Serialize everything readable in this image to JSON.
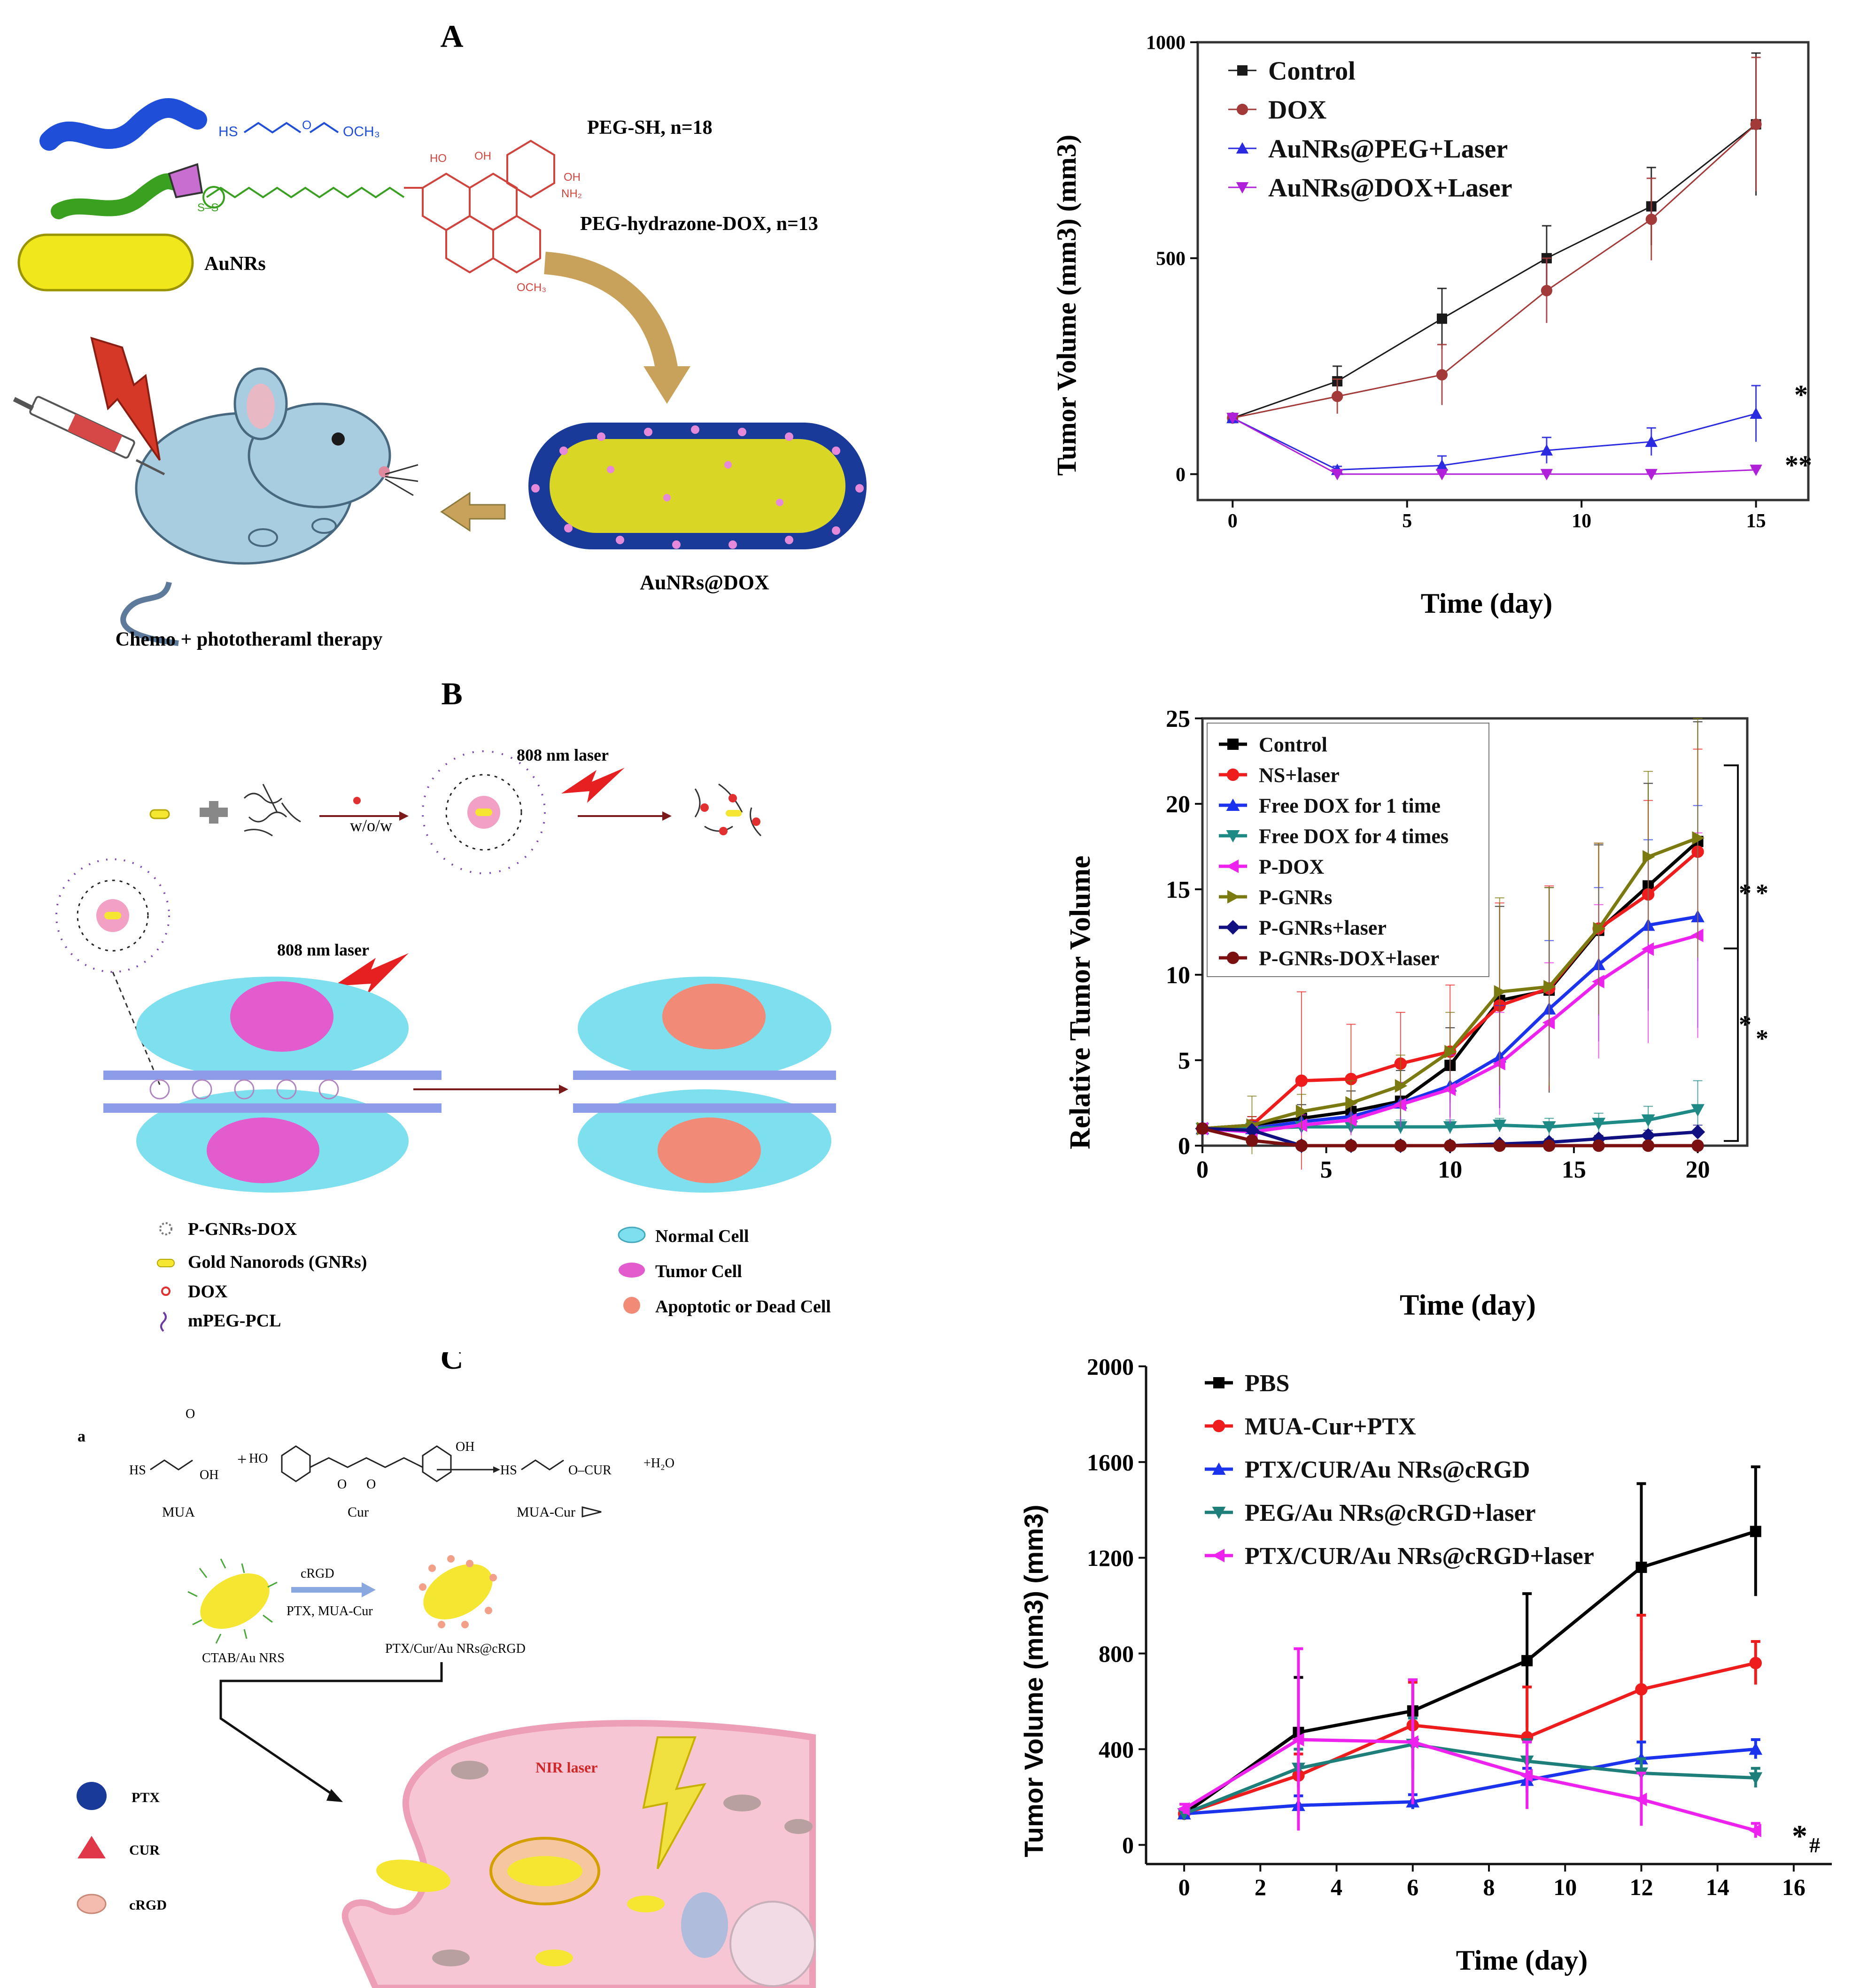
{
  "panels": {
    "A": {
      "letter": "A",
      "labels": {
        "peg_sh": "PEG-SH, n=18",
        "peg_dox": "PEG-hydrazone-DOX,  n=13",
        "aunrs": "AuNRs",
        "aunrs_dox": "AuNRs@DOX",
        "therapy": "Chemo + phototheraml  therapy",
        "sh_formula_left": "HS",
        "sh_formula_right": "OCH₃",
        "dox_methoxy": "OCH₃",
        "dox_nh2": "NH₂"
      }
    },
    "B": {
      "letter": "B",
      "labels": {
        "laser1": "808 nm laser",
        "laser2": "808 nm laser",
        "wow": "w/o/w"
      },
      "legend_left": [
        "P-GNRs-DOX",
        "Gold Nanorods (GNRs)",
        "DOX",
        "mPEG-PCL"
      ],
      "legend_right": [
        "Normal Cell",
        "Tumor Cell",
        "Apoptotic or Dead Cell"
      ]
    },
    "C": {
      "letter": "C",
      "labels": {
        "a": "a",
        "mua": "MUA",
        "cur": "Cur",
        "mua_cur": "MUA-Cur",
        "h2o": "+H₂O",
        "crgd": "cRGD",
        "ptx_mua": "PTX, MUA-Cur",
        "ctab": "CTAB/Au NRS",
        "ptx_cur_au": "PTX/Cur/Au NRs@cRGD",
        "nir": "NIR laser",
        "hs": "HS",
        "oh": "OH",
        "ho": "HO",
        "ocur": "O–CUR"
      },
      "legend": [
        "PTX",
        "CUR",
        "cRGD"
      ]
    }
  },
  "chart_data": [
    {
      "type": "line",
      "id": "chart-a",
      "title": "",
      "xlabel": "Time (day)",
      "ylabel": "Tumor Volume (mm3) (mm3)",
      "xlim": [
        -1,
        16.5
      ],
      "ylim": [
        -60,
        1000
      ],
      "xticks": [
        0,
        5,
        10,
        15
      ],
      "yticks": [
        0,
        500,
        1000
      ],
      "x": [
        0,
        3,
        6,
        9,
        12,
        15
      ],
      "series": [
        {
          "name": "Control",
          "color": "#1a1a1a",
          "marker": "square",
          "values": [
            130,
            215,
            360,
            500,
            620,
            810
          ],
          "errors": [
            10,
            35,
            70,
            75,
            90,
            165
          ]
        },
        {
          "name": "DOX",
          "color": "#a33a3a",
          "marker": "circle",
          "values": [
            130,
            180,
            230,
            425,
            590,
            810
          ],
          "errors": [
            10,
            40,
            70,
            75,
            95,
            155
          ]
        },
        {
          "name": "AuNRs@PEG+Laser",
          "color": "#2a2ae0",
          "marker": "triangle-up",
          "values": [
            130,
            10,
            20,
            55,
            75,
            140
          ],
          "errors": [
            8,
            8,
            22,
            30,
            32,
            65
          ]
        },
        {
          "name": "AuNRs@DOX+Laser",
          "color": "#b020d8",
          "marker": "triangle-down",
          "values": [
            130,
            0,
            0,
            0,
            0,
            10
          ],
          "errors": [
            6,
            4,
            4,
            4,
            4,
            4
          ]
        }
      ],
      "annotations": [
        "*",
        "**"
      ]
    },
    {
      "type": "line",
      "id": "chart-b",
      "title": "",
      "xlabel": "Time (day)",
      "ylabel": "Relative Tumor Volume",
      "xlim": [
        0,
        22
      ],
      "ylim": [
        0,
        25
      ],
      "xticks": [
        0,
        5,
        10,
        15,
        20
      ],
      "yticks": [
        0,
        5,
        10,
        15,
        20,
        25
      ],
      "x": [
        0,
        2,
        4,
        6,
        8,
        10,
        12,
        14,
        16,
        18,
        20
      ],
      "series": [
        {
          "name": "Control",
          "color": "#000000",
          "marker": "square",
          "values": [
            1,
            1.2,
            1.6,
            2.0,
            2.6,
            4.7,
            8.5,
            9.1,
            12.6,
            15.2,
            17.8
          ],
          "errors": [
            0.2,
            0.5,
            0.8,
            1.2,
            1.8,
            2.2,
            5.5,
            6.0,
            5.0,
            6.0,
            7.0
          ]
        },
        {
          "name": "NS+laser",
          "color": "#ee1c1c",
          "marker": "circle",
          "values": [
            1,
            1.2,
            3.8,
            3.9,
            4.8,
            5.5,
            8.2,
            9.2,
            12.7,
            14.7,
            17.2
          ],
          "errors": [
            0.2,
            0.5,
            5.2,
            3.2,
            3.0,
            3.9,
            6.0,
            6.0,
            5.0,
            5.5,
            6.0
          ]
        },
        {
          "name": "Free DOX for 1 time",
          "color": "#1c33ee",
          "marker": "triangle-up",
          "values": [
            1,
            1.0,
            1.4,
            1.7,
            2.5,
            3.5,
            5.2,
            8.0,
            10.6,
            12.9,
            13.4
          ],
          "errors": [
            0.2,
            0.4,
            0.6,
            0.9,
            1.2,
            1.8,
            3.0,
            4.0,
            4.5,
            5.0,
            6.5
          ]
        },
        {
          "name": "Free DOX for 4 times",
          "color": "#1e8a86",
          "marker": "triangle-down",
          "values": [
            1,
            1.0,
            1.1,
            1.1,
            1.1,
            1.1,
            1.2,
            1.1,
            1.3,
            1.5,
            2.1
          ],
          "errors": [
            0.2,
            0.3,
            0.3,
            0.3,
            0.4,
            0.4,
            0.4,
            0.5,
            0.6,
            0.8,
            1.7
          ]
        },
        {
          "name": "P-DOX",
          "color": "#ee22ee",
          "marker": "triangle-left",
          "values": [
            1,
            0.8,
            1.2,
            1.5,
            2.4,
            3.3,
            4.8,
            7.2,
            9.6,
            11.5,
            12.3
          ],
          "errors": [
            0.2,
            0.3,
            0.6,
            0.9,
            1.3,
            2.0,
            3.0,
            3.5,
            4.5,
            5.5,
            6.0
          ]
        },
        {
          "name": "P-GNRs",
          "color": "#7a7a10",
          "marker": "triangle-right",
          "values": [
            1,
            1.2,
            2.0,
            2.5,
            3.5,
            5.5,
            9.0,
            9.3,
            12.7,
            16.9,
            18.0
          ],
          "errors": [
            0.2,
            1.7,
            1.0,
            1.3,
            1.8,
            2.3,
            5.5,
            5.8,
            5.0,
            5.0,
            7.0
          ]
        },
        {
          "name": "P-GNRs+laser",
          "color": "#101080",
          "marker": "diamond",
          "values": [
            1,
            0.9,
            0.0,
            0.0,
            0.0,
            0.0,
            0.1,
            0.2,
            0.4,
            0.6,
            0.8
          ],
          "errors": [
            0.1,
            0.1,
            0.05,
            0.05,
            0.05,
            0.05,
            0.1,
            0.2,
            0.2,
            0.3,
            0.4
          ]
        },
        {
          "name": "P-GNRs-DOX+laser",
          "color": "#7a1010",
          "marker": "circle",
          "values": [
            1,
            0.3,
            0.0,
            0.0,
            0.0,
            0.0,
            0.0,
            0.0,
            0.0,
            0.0,
            0.0
          ],
          "errors": [
            0.1,
            0.1,
            0.05,
            0.05,
            0.05,
            0.05,
            0.05,
            0.05,
            0.05,
            0.05,
            0.05
          ]
        }
      ],
      "annotations": [
        "*",
        "*",
        "*",
        "*"
      ]
    },
    {
      "type": "line",
      "id": "chart-c",
      "title": "",
      "xlabel": "Time (day)",
      "ylabel": "Tumor Volume (mm3) (mm3)",
      "xlim": [
        -1,
        17
      ],
      "ylim": [
        -80,
        2000
      ],
      "xticks": [
        0,
        2,
        4,
        6,
        8,
        10,
        12,
        14,
        16
      ],
      "yticks": [
        0,
        400,
        800,
        1200,
        1600,
        2000
      ],
      "x": [
        0,
        3,
        6,
        9,
        12,
        15
      ],
      "series": [
        {
          "name": "PBS",
          "color": "#000000",
          "marker": "square",
          "values": [
            130,
            470,
            560,
            770,
            1160,
            1310
          ],
          "errors": [
            20,
            230,
            130,
            280,
            350,
            270
          ]
        },
        {
          "name": "MUA-Cur+PTX",
          "color": "#ee1c1c",
          "marker": "circle",
          "values": [
            130,
            290,
            500,
            450,
            650,
            760
          ],
          "errors": [
            20,
            90,
            180,
            210,
            310,
            90
          ]
        },
        {
          "name": "PTX/CUR/Au NRs@cRGD",
          "color": "#1c33ee",
          "marker": "triangle-up",
          "values": [
            130,
            165,
            180,
            270,
            360,
            400
          ],
          "errors": [
            20,
            40,
            30,
            50,
            70,
            40
          ]
        },
        {
          "name": "PEG/Au NRs@cRGD+laser",
          "color": "#1e7f7a",
          "marker": "triangle-down",
          "values": [
            130,
            320,
            420,
            350,
            300,
            280
          ],
          "errors": [
            20,
            80,
            110,
            90,
            60,
            40
          ]
        },
        {
          "name": "PTX/CUR/Au NRs@cRGD+laser",
          "color": "#ee22ee",
          "marker": "triangle-left",
          "values": [
            150,
            440,
            430,
            290,
            190,
            60
          ],
          "errors": [
            20,
            380,
            260,
            140,
            110,
            30
          ]
        }
      ],
      "annotations": [
        "*",
        "#"
      ]
    }
  ]
}
